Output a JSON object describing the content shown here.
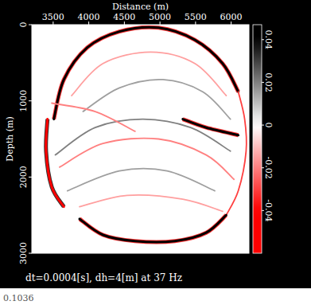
{
  "chart_data": {
    "type": "image",
    "title": "dt=0.0004[s], dh=4[m] at 37 Hz",
    "subtitle": "0.1036",
    "x_label": "Distance (m)",
    "y_label": "Depth (m)",
    "xlim": [
      3200,
      6250
    ],
    "xticks": [
      3500,
      4000,
      4500,
      5000,
      5500,
      6000
    ],
    "ylim": [
      0,
      3000
    ],
    "yticks": [
      0,
      1000,
      2000,
      3000
    ],
    "colorbar": {
      "range": [
        -0.06,
        0.047
      ],
      "ticks": [
        -0.04,
        -0.02,
        0,
        0.02,
        0.04
      ]
    },
    "series": [
      {
        "amplitude": 0.04,
        "x": [
          3510,
          3650,
          3980,
          4430,
          4980,
          5490,
          5880,
          6100
        ],
        "values": [
          1240,
          720,
          300,
          90,
          40,
          200,
          510,
          880
        ]
      },
      {
        "amplitude": -0.03,
        "x": [
          6100,
          6190,
          6210,
          6100,
          5930
        ],
        "values": [
          880,
          1240,
          1660,
          2180,
          2500
        ]
      },
      {
        "amplitude": 0.045,
        "x": [
          5930,
          5650,
          5210,
          4650,
          4200,
          3870
        ],
        "values": [
          2500,
          2730,
          2840,
          2840,
          2760,
          2550
        ]
      },
      {
        "amplitude": -0.04,
        "x": [
          3420,
          3400,
          3480,
          3650
        ],
        "values": [
          1240,
          1660,
          2130,
          2390
        ]
      },
      {
        "amplitude": 0.02,
        "x": [
          3530,
          4090,
          4760,
          5430,
          5990
        ],
        "values": [
          1710,
          1350,
          1240,
          1350,
          1660
        ]
      },
      {
        "amplitude": -0.02,
        "x": [
          3590,
          4200,
          4980,
          5650,
          6040
        ],
        "values": [
          1870,
          1560,
          1500,
          1710,
          2030
        ]
      },
      {
        "amplitude": 0.015,
        "x": [
          3700,
          4430,
          5100,
          5770
        ],
        "values": [
          2180,
          1920,
          1920,
          2180
        ]
      },
      {
        "amplitude": -0.015,
        "x": [
          3870,
          4540,
          5320,
          5880
        ],
        "values": [
          2390,
          2240,
          2290,
          2450
        ]
      },
      {
        "amplitude": -0.015,
        "x": [
          3760,
          4200,
          4870,
          5490,
          5930
        ],
        "values": [
          930,
          510,
          360,
          510,
          930
        ]
      },
      {
        "amplitude": 0.015,
        "x": [
          3920,
          4430,
          5040,
          5600,
          5990
        ],
        "values": [
          1140,
          830,
          720,
          880,
          1240
        ]
      },
      {
        "amplitude": 0.04,
        "x": [
          5320,
          5650,
          6100
        ],
        "values": [
          1240,
          1350,
          1450
        ]
      },
      {
        "amplitude": -0.02,
        "x": [
          3480,
          4090,
          4650
        ],
        "values": [
          1030,
          1140,
          1400
        ]
      }
    ]
  }
}
